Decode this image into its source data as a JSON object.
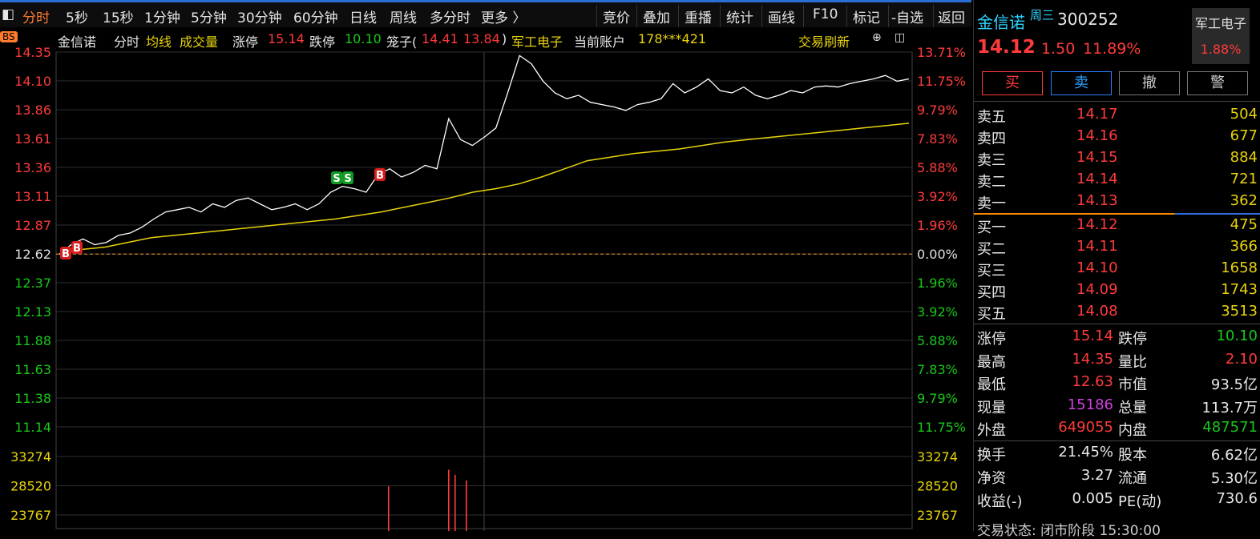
{
  "topbar": {
    "tabs": [
      "分时",
      "5秒",
      "15秒",
      "1分钟",
      "5分钟",
      "30分钟",
      "60分钟",
      "日线",
      "周线",
      "多分时",
      "更多 〉"
    ],
    "tools": [
      "竞价",
      "叠加",
      "重播",
      "统计",
      "画线",
      "F10",
      "标记",
      "-自选",
      "返回"
    ]
  },
  "infobar": {
    "name": "金信诺",
    "mode": "分时",
    "avg_label": "均线",
    "vol_label": "成交量",
    "limit_up_label": "涨停",
    "limit_up": "15.14",
    "limit_down_label": "跌停",
    "limit_down": "10.10",
    "cage_label": "笼子(",
    "cage_hi": "14.41",
    "cage_lo": "13.84",
    "cage_close": ")",
    "sector": "军工电子",
    "account_label": "当前账户",
    "account": "178***421",
    "refresh": "交易刷新",
    "bs_badge": "BS"
  },
  "chart_data": {
    "type": "line",
    "prev_close": 12.62,
    "price_ticks": [
      "14.35",
      "14.10",
      "13.86",
      "13.61",
      "13.36",
      "13.11",
      "12.87",
      "12.62",
      "12.37",
      "12.13",
      "11.88",
      "11.63",
      "11.38",
      "11.14"
    ],
    "pct_ticks": [
      "13.71%",
      "11.75%",
      "9.79%",
      "7.83%",
      "5.88%",
      "3.92%",
      "1.96%",
      "0.00%",
      "1.96%",
      "3.92%",
      "5.88%",
      "7.83%",
      "9.79%",
      "11.75%"
    ],
    "vol_ticks": [
      "33274",
      "28520",
      "23767"
    ],
    "price": [
      12.62,
      12.7,
      12.75,
      12.7,
      12.72,
      12.78,
      12.8,
      12.85,
      12.92,
      12.98,
      13.0,
      13.02,
      12.98,
      13.05,
      13.02,
      13.08,
      13.1,
      13.05,
      13.0,
      13.02,
      13.05,
      13.0,
      13.05,
      13.15,
      13.2,
      13.18,
      13.15,
      13.3,
      13.35,
      13.28,
      13.32,
      13.38,
      13.35,
      13.78,
      13.6,
      13.55,
      13.62,
      13.7,
      14.0,
      14.32,
      14.25,
      14.1,
      14.0,
      13.95,
      13.98,
      13.92,
      13.9,
      13.88,
      13.85,
      13.9,
      13.92,
      13.95,
      14.08,
      14.0,
      14.05,
      14.12,
      14.02,
      14.0,
      14.05,
      13.98,
      13.95,
      13.98,
      14.02,
      14.0,
      14.05,
      14.06,
      14.05,
      14.08,
      14.1,
      14.12,
      14.15,
      14.1,
      14.12
    ],
    "avg": [
      12.62,
      12.66,
      12.68,
      12.72,
      12.76,
      12.78,
      12.8,
      12.82,
      12.84,
      12.86,
      12.88,
      12.9,
      12.92,
      12.95,
      12.98,
      13.02,
      13.06,
      13.1,
      13.15,
      13.18,
      13.22,
      13.28,
      13.35,
      13.42,
      13.45,
      13.48,
      13.5,
      13.52,
      13.55,
      13.58,
      13.6,
      13.62,
      13.64,
      13.66,
      13.68,
      13.7,
      13.72,
      13.74
    ],
    "volumes": [
      0.62,
      0.85,
      0.78,
      0.7
    ],
    "markers": [
      {
        "label": "B",
        "type": "buy"
      },
      {
        "label": "B",
        "type": "buy"
      },
      {
        "label": "S",
        "type": "sell"
      },
      {
        "label": "S",
        "type": "sell"
      },
      {
        "label": "B",
        "type": "buy"
      }
    ]
  },
  "quote": {
    "name": "金信诺",
    "day": "周三",
    "code": "300252",
    "sector": "军工电子",
    "sector_pct": "1.88%",
    "price": "14.12",
    "change": "1.50",
    "pct": "11.89%",
    "buttons": [
      "买",
      "卖",
      "撤",
      "警"
    ],
    "asks": [
      {
        "label": "卖五",
        "price": "14.17",
        "vol": "504"
      },
      {
        "label": "卖四",
        "price": "14.16",
        "vol": "677"
      },
      {
        "label": "卖三",
        "price": "14.15",
        "vol": "884"
      },
      {
        "label": "卖二",
        "price": "14.14",
        "vol": "721"
      },
      {
        "label": "卖一",
        "price": "14.13",
        "vol": "362"
      }
    ],
    "bids": [
      {
        "label": "买一",
        "price": "14.12",
        "vol": "475"
      },
      {
        "label": "买二",
        "price": "14.11",
        "vol": "366"
      },
      {
        "label": "买三",
        "price": "14.10",
        "vol": "1658"
      },
      {
        "label": "买四",
        "price": "14.09",
        "vol": "1743"
      },
      {
        "label": "买五",
        "price": "14.08",
        "vol": "3513"
      }
    ],
    "stats": [
      {
        "l1": "涨停",
        "v1": "15.14",
        "l2": "跌停",
        "v2": "10.10"
      },
      {
        "l1": "最高",
        "v1": "14.35",
        "l2": "量比",
        "v2": "2.10"
      },
      {
        "l1": "最低",
        "v1": "12.63",
        "l2": "市值",
        "v2": "93.5亿"
      },
      {
        "l1": "现量",
        "v1": "15186",
        "l2": "总量",
        "v2": "113.7万"
      },
      {
        "l1": "外盘",
        "v1": "649055",
        "l2": "内盘",
        "v2": "487571"
      }
    ],
    "stats2": [
      {
        "l1": "换手",
        "v1": "21.45%",
        "l2": "股本",
        "v2": "6.62亿"
      },
      {
        "l1": "净资",
        "v1": "3.27",
        "l2": "流通",
        "v2": "5.30亿"
      },
      {
        "l1": "收益(-)",
        "v1": "0.005",
        "l2": "PE(动)",
        "v2": "730.6"
      }
    ],
    "status": "交易状态: 闭市阶段 15:30:00"
  },
  "colors": {
    "up": "#ff3b3b",
    "down": "#19c819",
    "avg": "#e8d30a",
    "price": "#ffffff",
    "grid": "#3a3a3a"
  }
}
